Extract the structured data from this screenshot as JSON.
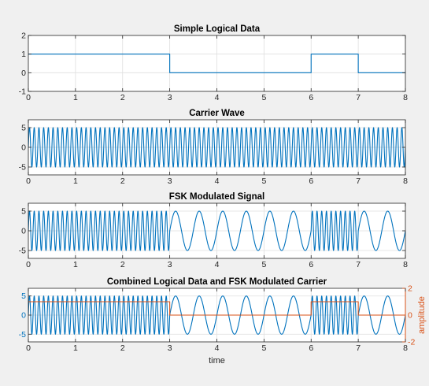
{
  "colors": {
    "figure_bg": "#f0f0f0",
    "axes_bg": "#ffffff",
    "grid": "#dfdfdf",
    "axis": "#262626",
    "signal": "#0072bd",
    "data_overlay": "#d95319"
  },
  "chart_data": [
    {
      "type": "line",
      "title": "Simple Logical Data",
      "xlabel": "",
      "ylabel": "",
      "xlim": [
        0,
        8
      ],
      "ylim": [
        -1,
        2
      ],
      "xticks": [
        "0",
        "1",
        "2",
        "3",
        "4",
        "5",
        "6",
        "7",
        "8"
      ],
      "yticks": [
        "-1",
        "0",
        "1",
        "2"
      ],
      "grid": true,
      "series": [
        {
          "kind": "step",
          "x": [
            0,
            1,
            2,
            3,
            4,
            5,
            6,
            7,
            8
          ],
          "y": [
            1,
            1,
            1,
            0,
            0,
            0,
            1,
            0,
            0
          ]
        }
      ]
    },
    {
      "type": "line",
      "title": "Carrier Wave",
      "xlabel": "",
      "ylabel": "",
      "xlim": [
        0,
        8
      ],
      "ylim": [
        -7,
        7
      ],
      "xticks": [
        "0",
        "1",
        "2",
        "3",
        "4",
        "5",
        "6",
        "7",
        "8"
      ],
      "yticks": [
        "-5",
        "0",
        "5"
      ],
      "grid": true,
      "series": [
        {
          "kind": "sine",
          "amplitude": 5,
          "frequency_hz": 10
        }
      ]
    },
    {
      "type": "line",
      "title": "FSK Modulated Signal",
      "xlabel": "",
      "ylabel": "",
      "xlim": [
        0,
        8
      ],
      "ylim": [
        -7,
        7
      ],
      "xticks": [
        "0",
        "1",
        "2",
        "3",
        "4",
        "5",
        "6",
        "7",
        "8"
      ],
      "yticks": [
        "-5",
        "0",
        "5"
      ],
      "grid": true,
      "series": [
        {
          "kind": "fsk",
          "amplitude": 5,
          "bits": [
            1,
            1,
            1,
            0,
            0,
            0,
            1,
            0
          ],
          "freq_high_hz": 10,
          "freq_low_hz": 2
        }
      ]
    },
    {
      "type": "line",
      "title": "Combined Logical Data and FSK Modulated Carrier",
      "xlabel": "time",
      "ylabel": "",
      "ylabel_right": "amplitude",
      "xlim": [
        0,
        8
      ],
      "ylim": [
        -7,
        7
      ],
      "ylim_right": [
        -2,
        2
      ],
      "xticks": [
        "0",
        "1",
        "2",
        "3",
        "4",
        "5",
        "6",
        "7",
        "8"
      ],
      "yticks": [
        "-5",
        "0",
        "5"
      ],
      "yticks_right": [
        "-2",
        "0",
        "2"
      ],
      "grid": true,
      "series": [
        {
          "kind": "fsk",
          "amplitude": 5,
          "bits": [
            1,
            1,
            1,
            0,
            0,
            0,
            1,
            0
          ],
          "freq_high_hz": 10,
          "freq_low_hz": 2
        },
        {
          "kind": "step",
          "axis": "right",
          "x": [
            0,
            1,
            2,
            3,
            4,
            5,
            6,
            7,
            8
          ],
          "y": [
            1,
            1,
            1,
            0,
            0,
            0,
            1,
            0,
            0
          ]
        }
      ]
    }
  ]
}
